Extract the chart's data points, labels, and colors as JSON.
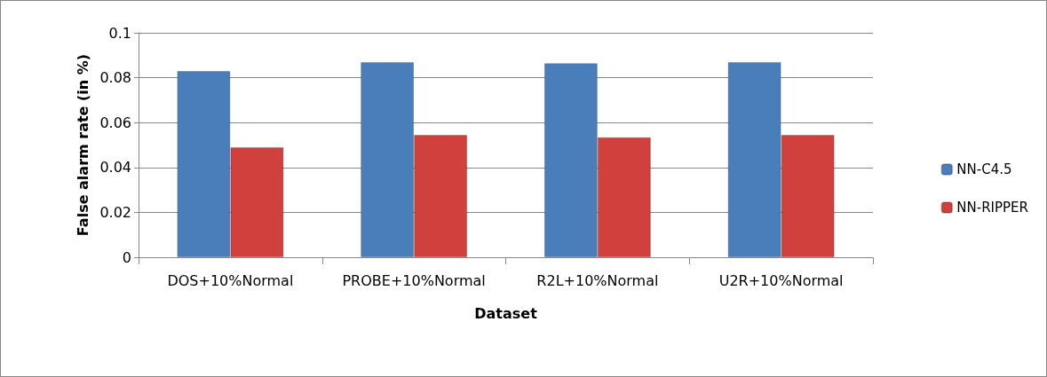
{
  "chart_data": {
    "type": "bar",
    "xlabel": "Dataset",
    "ylabel": "False alarm rate (in %)",
    "categories": [
      "DOS+10%Normal",
      "PROBE+10%Normal",
      "R2L+10%Normal",
      "U2R+10%Normal"
    ],
    "series": [
      {
        "name": "NN-C4.5",
        "color": "#4a7ebb",
        "values": [
          0.083,
          0.087,
          0.0865,
          0.087
        ]
      },
      {
        "name": "NN-RIPPER",
        "color": "#d0403c",
        "values": [
          0.049,
          0.0545,
          0.0535,
          0.0545
        ]
      }
    ],
    "ylim": [
      0,
      0.1
    ],
    "yticks": [
      0,
      0.02,
      0.04,
      0.06,
      0.08,
      0.1
    ],
    "grid": "y",
    "legend": "right"
  }
}
